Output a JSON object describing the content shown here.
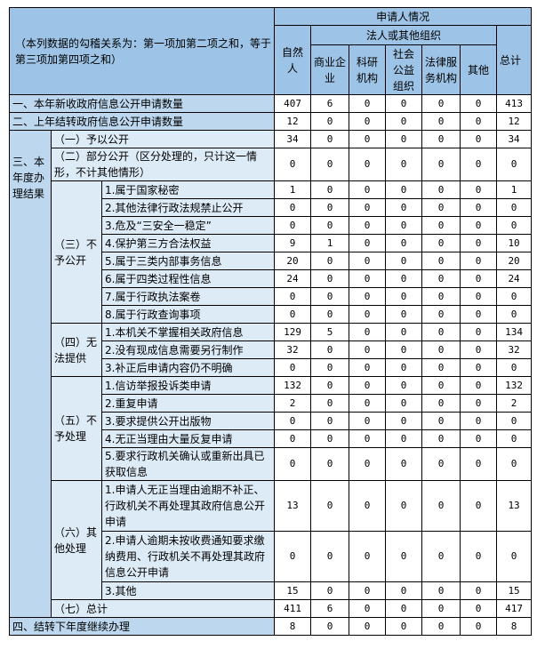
{
  "header": {
    "note": "（本列数据的勾稽关系为：第一项加第二项之和，等于第三项加第四项之和）",
    "applicant": "申请人情况",
    "natural_person": "自然人",
    "legal_group": "法人或其他组织",
    "org_cols": [
      "商业企业",
      "科研机构",
      "社会公益组织",
      "法律服务机构",
      "其他"
    ],
    "total": "总计"
  },
  "colors": {
    "header": "#9dc3e6",
    "label": "#bdd7ee",
    "sublabel": "#ddebf7"
  },
  "row_new": {
    "label": "一、本年新收政府信息公开申请数量",
    "values": [
      407,
      6,
      0,
      0,
      0,
      0,
      413
    ]
  },
  "row_carry": {
    "label": "二、上年结转政府信息公开申请数量",
    "values": [
      12,
      0,
      0,
      0,
      0,
      0,
      12
    ]
  },
  "result": {
    "label": "三、本年度办理结果",
    "open": {
      "label": "（一）予以公开",
      "values": [
        34,
        0,
        0,
        0,
        0,
        0,
        34
      ]
    },
    "partial": {
      "label": "（二）部分公开（区分处理的，只计这一情形，不计其他情形）",
      "values": [
        0,
        0,
        0,
        0,
        0,
        0,
        0
      ]
    },
    "groups": [
      {
        "label": "（三）不予公开",
        "items": [
          {
            "label": "1.属于国家秘密",
            "values": [
              1,
              0,
              0,
              0,
              0,
              0,
              1
            ]
          },
          {
            "label": "2.其他法律行政法规禁止公开",
            "values": [
              0,
              0,
              0,
              0,
              0,
              0,
              0
            ]
          },
          {
            "label": "3.危及“三安全一稳定”",
            "values": [
              0,
              0,
              0,
              0,
              0,
              0,
              0
            ]
          },
          {
            "label": "4.保护第三方合法权益",
            "values": [
              9,
              1,
              0,
              0,
              0,
              0,
              10
            ]
          },
          {
            "label": "5.属于三类内部事务信息",
            "values": [
              20,
              0,
              0,
              0,
              0,
              0,
              20
            ]
          },
          {
            "label": "6.属于四类过程性信息",
            "values": [
              24,
              0,
              0,
              0,
              0,
              0,
              24
            ]
          },
          {
            "label": "7.属于行政执法案卷",
            "values": [
              0,
              0,
              0,
              0,
              0,
              0,
              0
            ]
          },
          {
            "label": "8.属于行政查询事项",
            "values": [
              0,
              0,
              0,
              0,
              0,
              0,
              0
            ]
          }
        ]
      },
      {
        "label": "（四）无法提供",
        "items": [
          {
            "label": "1.本机关不掌握相关政府信息",
            "values": [
              129,
              5,
              0,
              0,
              0,
              0,
              134
            ]
          },
          {
            "label": "2.没有现成信息需要另行制作",
            "values": [
              32,
              0,
              0,
              0,
              0,
              0,
              32
            ]
          },
          {
            "label": "3.补正后申请内容仍不明确",
            "values": [
              0,
              0,
              0,
              0,
              0,
              0,
              0
            ]
          }
        ]
      },
      {
        "label": "（五）不予处理",
        "items": [
          {
            "label": "1.信访举报投诉类申请",
            "values": [
              132,
              0,
              0,
              0,
              0,
              0,
              132
            ]
          },
          {
            "label": "2.重复申请",
            "values": [
              2,
              0,
              0,
              0,
              0,
              0,
              2
            ]
          },
          {
            "label": "3.要求提供公开出版物",
            "values": [
              0,
              0,
              0,
              0,
              0,
              0,
              0
            ]
          },
          {
            "label": "4.无正当理由大量反复申请",
            "values": [
              0,
              0,
              0,
              0,
              0,
              0,
              0
            ]
          },
          {
            "label": "5.要求行政机关确认或重新出具已获取信息",
            "values": [
              0,
              0,
              0,
              0,
              0,
              0,
              0
            ]
          }
        ]
      },
      {
        "label": "（六）其他处理",
        "items": [
          {
            "label": "1.申请人无正当理由逾期不补正、行政机关不再处理其政府信息公开申请",
            "values": [
              13,
              0,
              0,
              0,
              0,
              0,
              13
            ]
          },
          {
            "label": "2.申请人逾期未按收费通知要求缴纳费用、行政机关不再处理其政府信息公开申请",
            "values": [
              0,
              0,
              0,
              0,
              0,
              0,
              0
            ]
          },
          {
            "label": "3.其他",
            "values": [
              15,
              0,
              0,
              0,
              0,
              0,
              15
            ]
          }
        ]
      }
    ],
    "total": {
      "label": "（七）总计",
      "values": [
        411,
        6,
        0,
        0,
        0,
        0,
        417
      ]
    }
  },
  "row_next": {
    "label": "四、结转下年度继续办理",
    "values": [
      8,
      0,
      0,
      0,
      0,
      0,
      8
    ]
  }
}
